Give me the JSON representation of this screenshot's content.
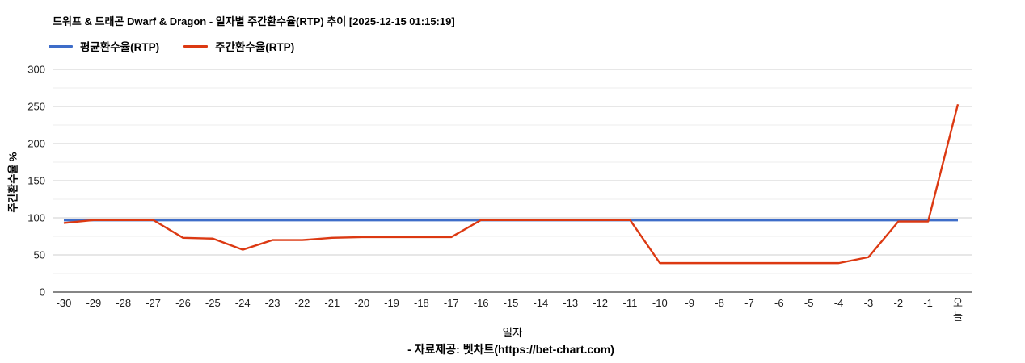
{
  "chart_data": {
    "type": "line",
    "title": "드워프 & 드래곤 Dwarf & Dragon - 일자별 주간환수율(RTP) 추이 [2025-12-15 01:15:19]",
    "xlabel": "일자",
    "ylabel": "주간환수율 %",
    "ylim": [
      0,
      300
    ],
    "y_tick_step": 50,
    "y_grid_step": 25,
    "grid": true,
    "legend_position": "top",
    "categories": [
      "-30",
      "-29",
      "-28",
      "-27",
      "-26",
      "-25",
      "-24",
      "-23",
      "-22",
      "-21",
      "-20",
      "-19",
      "-18",
      "-17",
      "-16",
      "-15",
      "-14",
      "-13",
      "-12",
      "-11",
      "-10",
      "-9",
      "-8",
      "-7",
      "-6",
      "-5",
      "-4",
      "-3",
      "-2",
      "-1",
      "오늘"
    ],
    "series": [
      {
        "name": "평균환수율(RTP)",
        "color": "#3e6dc9",
        "values": [
          96.5,
          96.5,
          96.5,
          96.5,
          96.5,
          96.5,
          96.5,
          96.5,
          96.5,
          96.5,
          96.5,
          96.5,
          96.5,
          96.5,
          96.5,
          96.5,
          96.5,
          96.5,
          96.5,
          96.5,
          96.5,
          96.5,
          96.5,
          96.5,
          96.5,
          96.5,
          96.5,
          96.5,
          96.5,
          96.5,
          96.5
        ]
      },
      {
        "name": "주간환수율(RTP)",
        "color": "#dc3912",
        "values": [
          93,
          97,
          97,
          97,
          73,
          72,
          57,
          70,
          70,
          73,
          74,
          74,
          74,
          74,
          97,
          97,
          97,
          97,
          97,
          97,
          39,
          39,
          39,
          39,
          39,
          39,
          39,
          47,
          95,
          95,
          253
        ]
      }
    ],
    "colors": {
      "major_gridline": "#cfcfcf",
      "minor_gridline": "#ececec",
      "axis_line": "#3d3d3d"
    }
  },
  "footer": {
    "text": "- 자료제공: 벳차트(https://bet-chart.com)"
  }
}
